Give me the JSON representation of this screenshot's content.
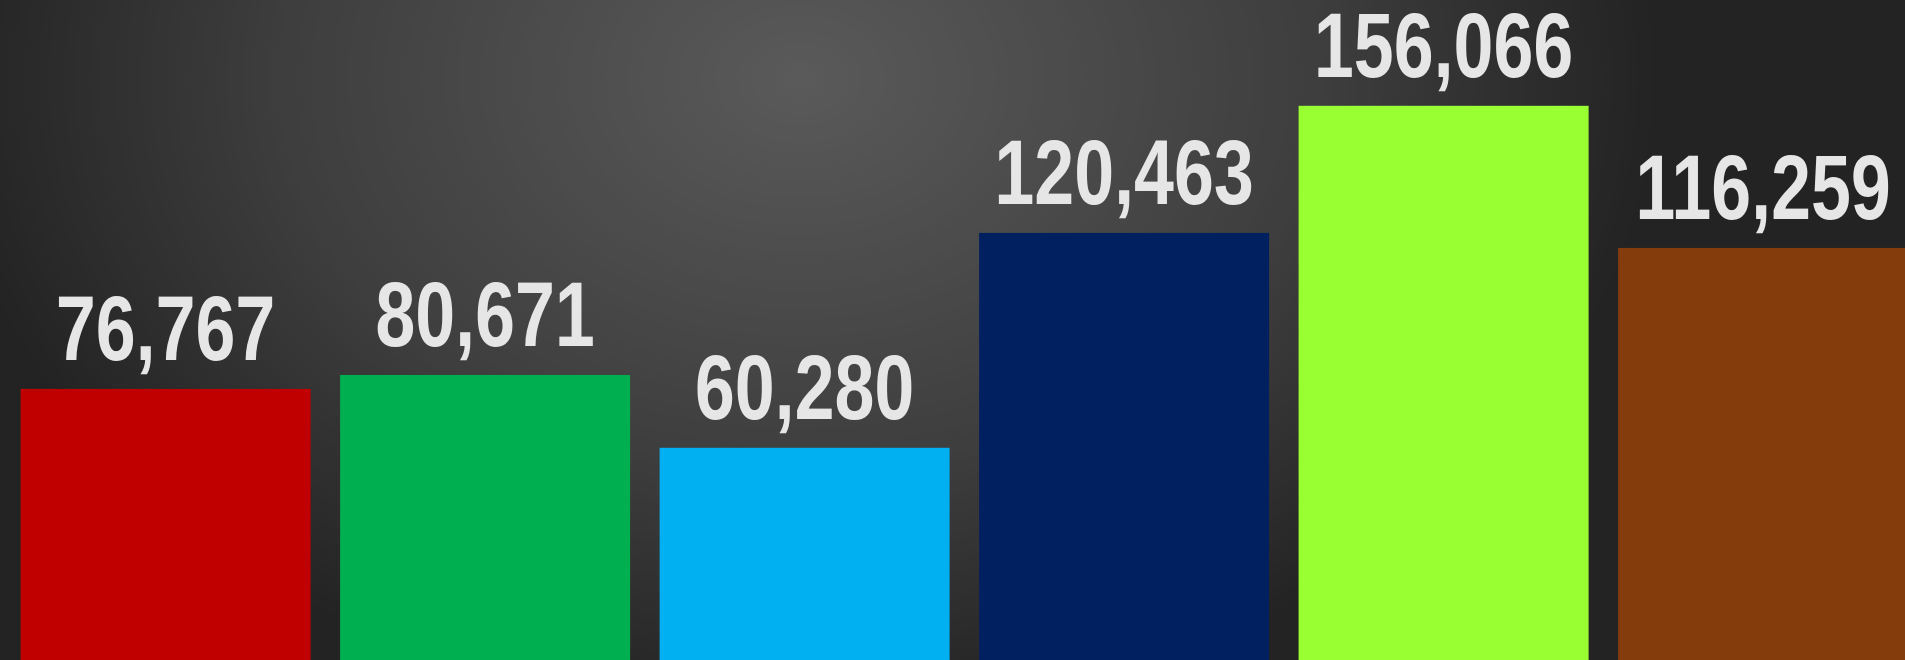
{
  "chart_data": {
    "type": "bar",
    "categories": [
      null,
      null,
      null,
      null,
      null,
      null
    ],
    "values": [
      76767,
      80671,
      60280,
      120463,
      156066,
      116259
    ],
    "value_labels": [
      "76,767",
      "80,671",
      "60,280",
      "120,463",
      "156,066",
      "116,259"
    ],
    "colors": [
      "#c00000",
      "#00b050",
      "#00b0f0",
      "#002060",
      "#99ff33",
      "#843c0c"
    ],
    "ylim": [
      0,
      185700
    ]
  }
}
